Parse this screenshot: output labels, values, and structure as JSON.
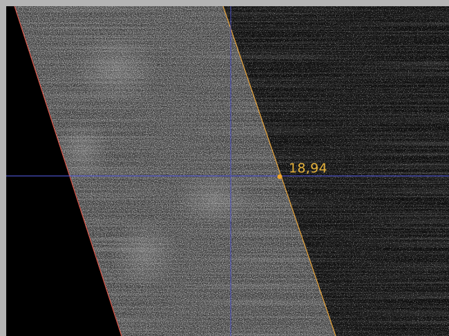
{
  "image_view": {
    "title": "",
    "cursor_readout": {
      "text": "18,94",
      "color": "#e6b23a"
    },
    "marker_color": "#f2a62b",
    "crosshair_color": "#4a4fc4",
    "left_edge_line_color": "#e0574a",
    "right_edge_line_color": "#e8a43a",
    "background_color": "#000000",
    "frame_color": "#b5b5b5"
  }
}
